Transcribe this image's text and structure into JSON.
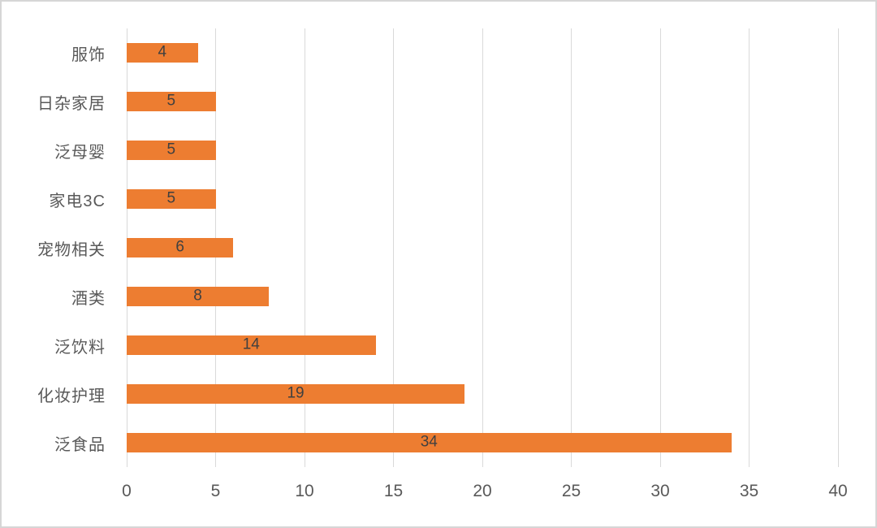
{
  "chart_data": {
    "type": "bar",
    "orientation": "horizontal",
    "title": "",
    "xlabel": "",
    "ylabel": "",
    "categories": [
      "服饰",
      "日杂家居",
      "泛母婴",
      "家电3C",
      "宠物相关",
      "酒类",
      "泛饮料",
      "化妆护理",
      "泛食品"
    ],
    "values": [
      4,
      5,
      5,
      5,
      6,
      8,
      14,
      19,
      34
    ],
    "data_labels": [
      "4",
      "5",
      "5",
      "5",
      "6",
      "8",
      "14",
      "19",
      "34"
    ],
    "xlim": [
      0,
      40
    ],
    "xticks": [
      "0",
      "5",
      "10",
      "15",
      "20",
      "25",
      "30",
      "35",
      "40"
    ],
    "grid": "vertical-only",
    "legend": "none",
    "colors": {
      "bar": "#ed7d31",
      "data_label": "#404040",
      "axis_text": "#595959",
      "gridline": "#d9d9d9",
      "background": "#ffffff",
      "frame_border": "#d6d6d6"
    }
  }
}
